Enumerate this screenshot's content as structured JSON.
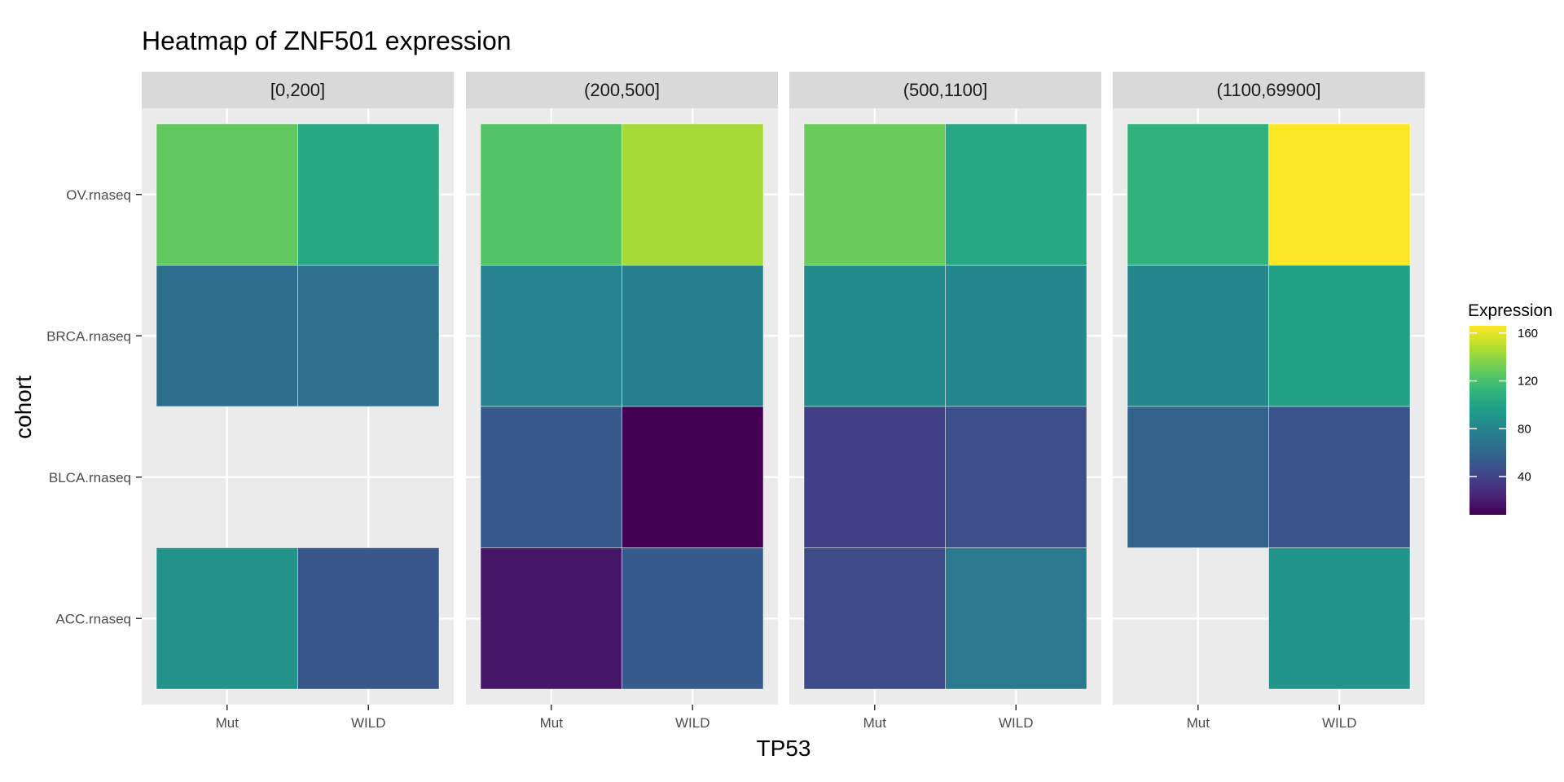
{
  "chart_data": {
    "type": "heatmap",
    "title": "Heatmap of ZNF501 expression",
    "xlabel": "TP53",
    "ylabel": "cohort",
    "x_categories": [
      "Mut",
      "WILD"
    ],
    "y_categories": [
      "OV.rnaseq",
      "BRCA.rnaseq",
      "BLCA.rnaseq",
      "ACC.rnaseq"
    ],
    "facets": [
      "[0,200]",
      "(200,500]",
      "(500,1100]",
      "(1100,69900]"
    ],
    "grid": true,
    "legend": {
      "title": "Expression",
      "position": "right",
      "min": 8,
      "max": 166,
      "ticks": [
        40,
        80,
        120,
        160
      ],
      "palette": [
        "#440154",
        "#482878",
        "#3E4A89",
        "#31688E",
        "#26828E",
        "#1F9E89",
        "#35B779",
        "#6DCD59",
        "#B4DE2C",
        "#FDE725"
      ]
    },
    "cells": [
      {
        "facet": "[0,200]",
        "x": "Mut",
        "y": "OV.rnaseq",
        "value": 127
      },
      {
        "facet": "[0,200]",
        "x": "WILD",
        "y": "OV.rnaseq",
        "value": 103
      },
      {
        "facet": "[0,200]",
        "x": "Mut",
        "y": "BRCA.rnaseq",
        "value": 65
      },
      {
        "facet": "[0,200]",
        "x": "WILD",
        "y": "BRCA.rnaseq",
        "value": 66
      },
      {
        "facet": "[0,200]",
        "x": "Mut",
        "y": "ACC.rnaseq",
        "value": 89
      },
      {
        "facet": "[0,200]",
        "x": "WILD",
        "y": "ACC.rnaseq",
        "value": 50
      },
      {
        "facet": "(200,500]",
        "x": "Mut",
        "y": "OV.rnaseq",
        "value": 123
      },
      {
        "facet": "(200,500]",
        "x": "WILD",
        "y": "OV.rnaseq",
        "value": 145
      },
      {
        "facet": "(200,500]",
        "x": "Mut",
        "y": "BRCA.rnaseq",
        "value": 78
      },
      {
        "facet": "(200,500]",
        "x": "WILD",
        "y": "BRCA.rnaseq",
        "value": 76
      },
      {
        "facet": "(200,500]",
        "x": "Mut",
        "y": "BLCA.rnaseq",
        "value": 52
      },
      {
        "facet": "(200,500]",
        "x": "WILD",
        "y": "BLCA.rnaseq",
        "value": 8
      },
      {
        "facet": "(200,500]",
        "x": "Mut",
        "y": "ACC.rnaseq",
        "value": 18
      },
      {
        "facet": "(200,500]",
        "x": "WILD",
        "y": "ACC.rnaseq",
        "value": 53
      },
      {
        "facet": "(500,1100]",
        "x": "Mut",
        "y": "OV.rnaseq",
        "value": 130
      },
      {
        "facet": "(500,1100]",
        "x": "WILD",
        "y": "OV.rnaseq",
        "value": 103
      },
      {
        "facet": "(500,1100]",
        "x": "Mut",
        "y": "BRCA.rnaseq",
        "value": 84
      },
      {
        "facet": "(500,1100]",
        "x": "WILD",
        "y": "BRCA.rnaseq",
        "value": 81
      },
      {
        "facet": "(500,1100]",
        "x": "Mut",
        "y": "BLCA.rnaseq",
        "value": 38
      },
      {
        "facet": "(500,1100]",
        "x": "WILD",
        "y": "BLCA.rnaseq",
        "value": 46
      },
      {
        "facet": "(500,1100]",
        "x": "Mut",
        "y": "ACC.rnaseq",
        "value": 44
      },
      {
        "facet": "(500,1100]",
        "x": "WILD",
        "y": "ACC.rnaseq",
        "value": 72
      },
      {
        "facet": "(1100,69900]",
        "x": "Mut",
        "y": "OV.rnaseq",
        "value": 110
      },
      {
        "facet": "(1100,69900]",
        "x": "WILD",
        "y": "OV.rnaseq",
        "value": 166
      },
      {
        "facet": "(1100,69900]",
        "x": "Mut",
        "y": "BRCA.rnaseq",
        "value": 81
      },
      {
        "facet": "(1100,69900]",
        "x": "WILD",
        "y": "BRCA.rnaseq",
        "value": 98
      },
      {
        "facet": "(1100,69900]",
        "x": "Mut",
        "y": "BLCA.rnaseq",
        "value": 58
      },
      {
        "facet": "(1100,69900]",
        "x": "WILD",
        "y": "BLCA.rnaseq",
        "value": 49
      },
      {
        "facet": "(1100,69900]",
        "x": "WILD",
        "y": "ACC.rnaseq",
        "value": 90
      }
    ]
  }
}
